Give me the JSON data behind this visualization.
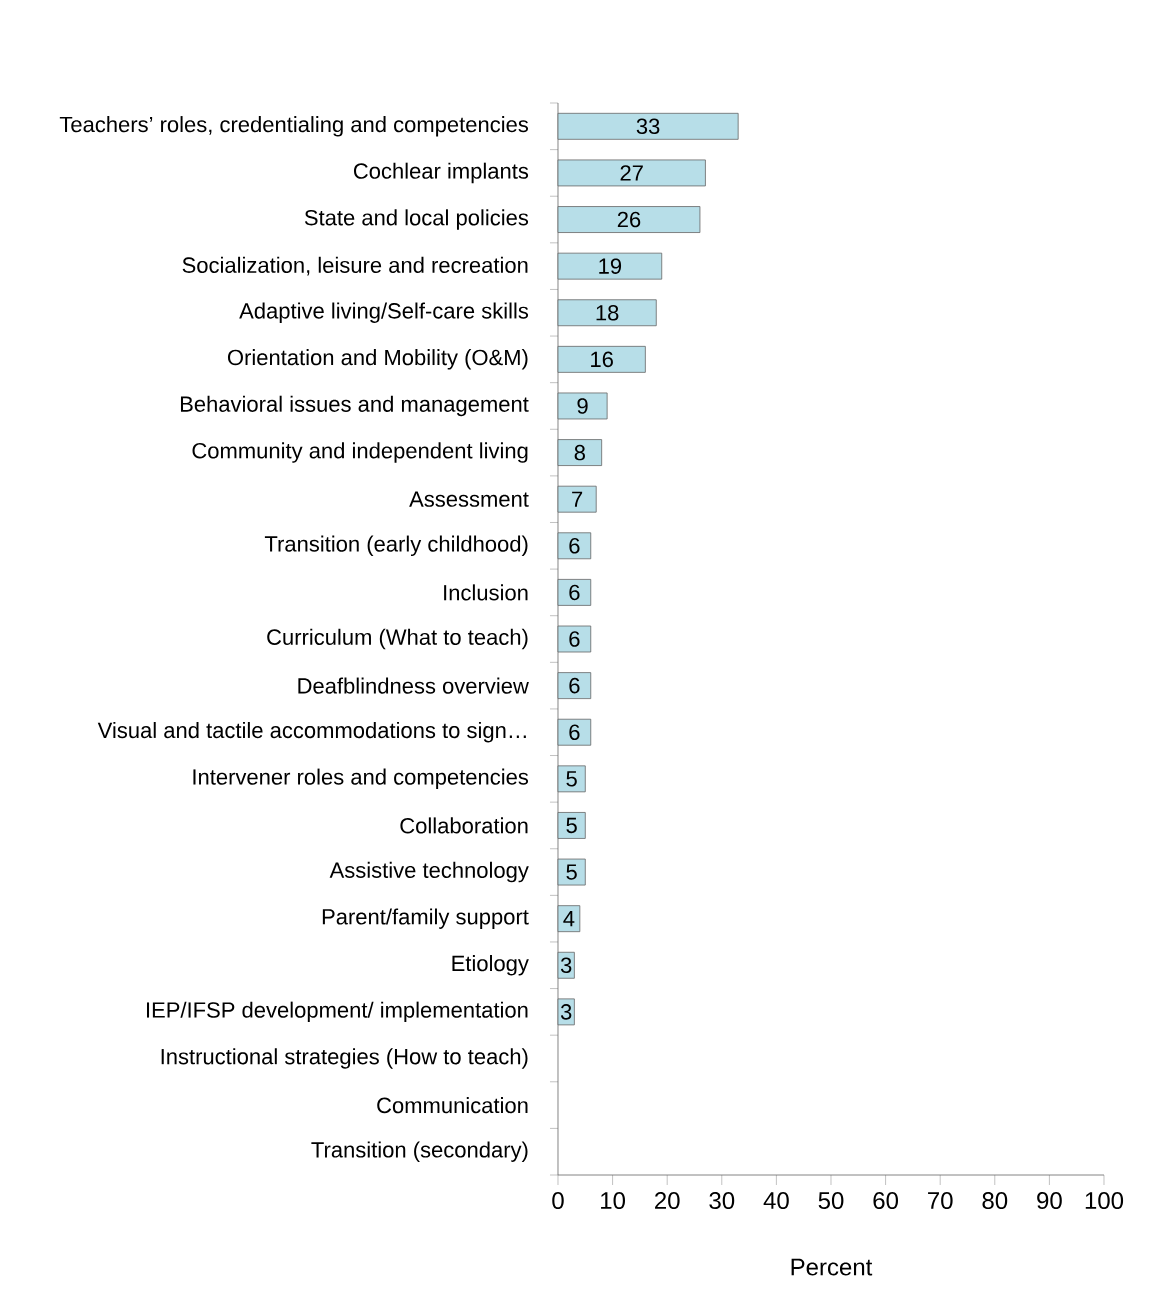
{
  "chart_data": {
    "type": "bar",
    "orientation": "horizontal",
    "xlabel": "Percent",
    "categories": [
      "Teachers’ roles, credentialing and competencies",
      "Cochlear implants",
      "State and local policies",
      "Socialization, leisure and recreation",
      "Adaptive living/Self-care skills",
      "Orientation and Mobility (O&M)",
      "Behavioral issues and management",
      "Community and independent living",
      "Assessment",
      "Transition (early childhood)",
      "Inclusion",
      "Curriculum (What to teach)",
      "Deafblindness overview",
      "Visual and tactile accommodations to sign…",
      "Intervener roles and competencies",
      "Collaboration",
      "Assistive technology",
      "Parent/family support",
      "Etiology",
      "IEP/IFSP development/ implementation",
      "Instructional strategies (How to teach)",
      "Communication",
      "Transition (secondary)"
    ],
    "values": [
      33,
      27,
      26,
      19,
      18,
      16,
      9,
      8,
      7,
      6,
      6,
      6,
      6,
      6,
      5,
      5,
      5,
      4,
      3,
      3,
      null,
      null,
      null
    ],
    "color": "#b7dee8",
    "data_labels": true,
    "xlim": [
      0,
      100
    ],
    "xticks": [
      0,
      10,
      20,
      30,
      40,
      50,
      60,
      70,
      80,
      90,
      100
    ]
  }
}
